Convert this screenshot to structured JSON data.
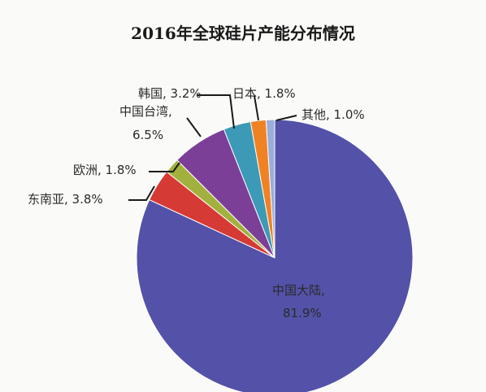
{
  "chart_data": {
    "type": "pie",
    "title": "2016年全球硅片产能分布情况",
    "slices": [
      {
        "name": "中国大陆",
        "value": 81.9,
        "label": "81.9%",
        "color": "#5352a8"
      },
      {
        "name": "东南亚",
        "value": 3.8,
        "label": "3.8%",
        "color": "#d63a35"
      },
      {
        "name": "欧洲",
        "value": 1.8,
        "label": "1.8%",
        "color": "#a2b13d"
      },
      {
        "name": "中国台湾",
        "value": 6.5,
        "label": "6.5%",
        "color": "#7b3f98"
      },
      {
        "name": "韩国",
        "value": 3.2,
        "label": "3.2%",
        "color": "#3c9ab6"
      },
      {
        "name": "日本",
        "value": 1.8,
        "label": "1.8%",
        "color": "#f08224"
      },
      {
        "name": "其他",
        "value": 1.0,
        "label": "1.0%",
        "color": "#9aaedc"
      }
    ],
    "legend": "none"
  },
  "labels": {
    "mainland_name": "中国大陆,",
    "mainland_pct": "81.9%",
    "taiwan_name": "中国台湾,",
    "taiwan_pct": "6.5%",
    "korea": "韩国, 3.2%",
    "japan": "日本, 1.8%",
    "other": "其他, 1.0%",
    "europe": "欧洲, 1.8%",
    "sea": "东南亚, 3.8%"
  }
}
